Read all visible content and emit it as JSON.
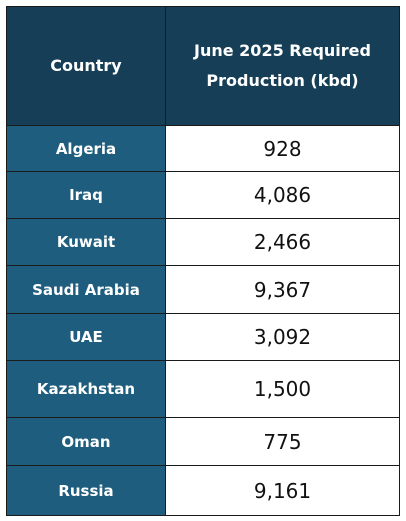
{
  "table": {
    "header": [
      "Country",
      "June 2025 Required Production (kbd)"
    ],
    "rows": [
      [
        "Algeria",
        "928"
      ],
      [
        "Iraq",
        "4,086"
      ],
      [
        "Kuwait",
        "2,466"
      ],
      [
        "Saudi Arabia",
        "9,367"
      ],
      [
        "UAE",
        "3,092"
      ],
      [
        "Kazakhstan",
        "1,500"
      ],
      [
        "Oman",
        "775"
      ],
      [
        "Russia",
        "9,161"
      ]
    ]
  }
}
